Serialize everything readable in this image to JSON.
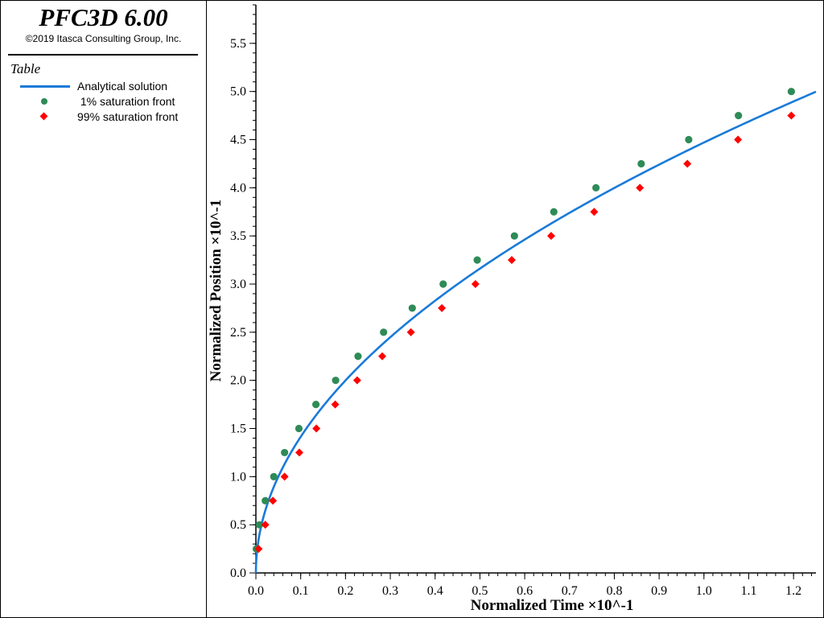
{
  "app": {
    "title": "PFC3D 6.00",
    "copyright": "©2019 Itasca Consulting Group, Inc."
  },
  "legend": {
    "title": "Table",
    "entries": [
      {
        "label": "Analytical solution",
        "marker": "line",
        "color": "#1a7ad9"
      },
      {
        "label": " 1% saturation front",
        "marker": "circle",
        "color": "#2e8b57"
      },
      {
        "label": "99% saturation front",
        "marker": "diamond",
        "color": "#ff0000"
      }
    ]
  },
  "chart_data": {
    "type": "scatter",
    "xlabel": "Normalized Time ×10^-1",
    "ylabel": "Normalized Position ×10^-1",
    "xlim": [
      0.0,
      1.25
    ],
    "ylim": [
      0.0,
      5.9
    ],
    "xticks": [
      "0.0",
      "0.1",
      "0.2",
      "0.3",
      "0.4",
      "0.5",
      "0.6",
      "0.7",
      "0.8",
      "0.9",
      "1.0",
      "1.1",
      "1.2"
    ],
    "yticks": [
      "0.0",
      "0.5",
      "1.0",
      "1.5",
      "2.0",
      "2.5",
      "3.0",
      "3.5",
      "4.0",
      "4.5",
      "5.0",
      "5.5"
    ],
    "series": [
      {
        "name": "Analytical solution",
        "kind": "line",
        "color": "#1a7ad9",
        "model": "y = 4.47 * sqrt(x)"
      },
      {
        "name": " 1% saturation front",
        "kind": "circle",
        "color": "#2e8b57",
        "x": [
          0.001,
          0.008,
          0.021,
          0.04,
          0.064,
          0.096,
          0.134,
          0.178,
          0.228,
          0.285,
          0.349,
          0.418,
          0.494,
          0.577,
          0.665,
          0.759,
          0.86,
          0.966,
          1.077,
          1.195
        ],
        "y": [
          0.25,
          0.5,
          0.75,
          1.0,
          1.25,
          1.5,
          1.75,
          2.0,
          2.25,
          2.5,
          2.75,
          3.0,
          3.25,
          3.5,
          3.75,
          4.0,
          4.25,
          4.5,
          4.75,
          5.0
        ]
      },
      {
        "name": "99% saturation front",
        "kind": "diamond",
        "color": "#ff0000",
        "x": [
          0.006,
          0.021,
          0.038,
          0.064,
          0.097,
          0.135,
          0.177,
          0.226,
          0.282,
          0.346,
          0.415,
          0.49,
          0.571,
          0.659,
          0.755,
          0.857,
          0.963,
          1.076,
          1.195
        ],
        "y": [
          0.25,
          0.5,
          0.75,
          1.0,
          1.25,
          1.5,
          1.75,
          2.0,
          2.25,
          2.5,
          2.75,
          3.0,
          3.25,
          3.5,
          3.75,
          4.0,
          4.25,
          4.5,
          4.75
        ]
      }
    ]
  }
}
